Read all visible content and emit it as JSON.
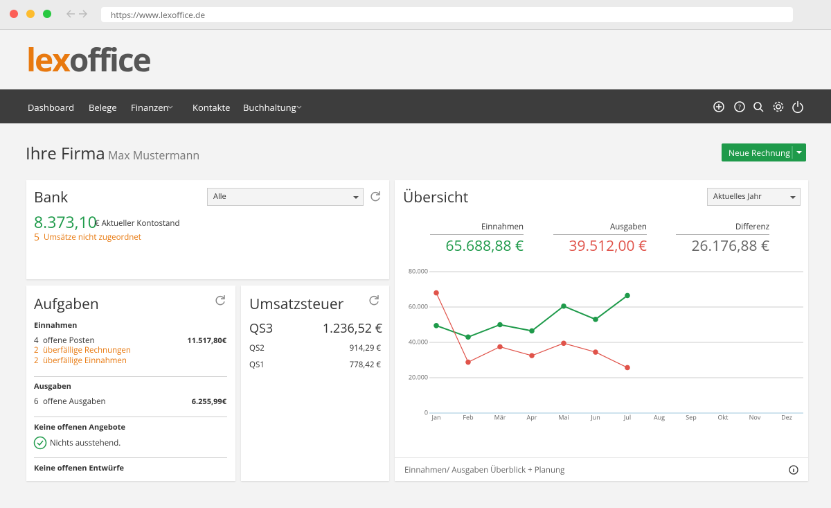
{
  "browser": {
    "url": "https://www.lexoffice.de"
  },
  "logo": {
    "part1": "lex",
    "part2": "office"
  },
  "nav": {
    "items": [
      "Dashboard",
      "Belege",
      "Finanzen",
      "Kontakte",
      "Buchhaltung"
    ]
  },
  "header": {
    "title": "Ihre Firma",
    "subtitle": "Max Mustermann",
    "button": "Neue Rechnung"
  },
  "bank": {
    "title": "Bank",
    "filter": "Alle",
    "balance": "8.373,10",
    "balance_label": "€ Aktueller Kontostand",
    "unassigned_count": "5",
    "unassigned_label": "Umsätze nicht zugeordnet"
  },
  "aufgaben": {
    "title": "Aufgaben",
    "income": {
      "heading": "Einnahmen",
      "open_count": "4",
      "open_label": "offene Posten",
      "open_amount": "11.517,80€",
      "overdue_invoices_count": "2",
      "overdue_invoices_label": "überfällige Rechnungen",
      "overdue_income_count": "2",
      "overdue_income_label": "überfällige Einnahmen"
    },
    "expenses": {
      "heading": "Ausgaben",
      "open_count": "6",
      "open_label": "offene Ausgaben",
      "open_amount": "6.255,99€"
    },
    "offers": {
      "heading": "Keine offenen Angebote",
      "status": "Nichts ausstehend."
    },
    "drafts": {
      "heading": "Keine offenen Entwürfe"
    }
  },
  "umsatzsteuer": {
    "title": "Umsatzsteuer",
    "rows": [
      [
        "QS3",
        "1.236,52 €"
      ],
      [
        "QS2",
        "914,29 €"
      ],
      [
        "QS1",
        "778,42 €"
      ]
    ]
  },
  "uebersicht": {
    "title": "Übersicht",
    "filter": "Aktuelles Jahr",
    "income_total": "65.688,88 €",
    "expense_total": "39.512,00 €",
    "difference_label": "Differenz",
    "difference_total": "26.176,88 €",
    "footer": "Einnahmen/ Ausgaben Überblick + Planung"
  },
  "chart_data": {
    "type": "line",
    "categories": [
      "Jan",
      "Feb",
      "Mär",
      "Apr",
      "Mai",
      "Jun",
      "Jul",
      "Aug",
      "Sep",
      "Okt",
      "Nov",
      "Dez"
    ],
    "series": [
      {
        "name": "Einnahmen",
        "color": "#1e9a4a",
        "values": [
          49500,
          43000,
          50000,
          46500,
          60500,
          53000,
          66500,
          null,
          null,
          null,
          null,
          null
        ]
      },
      {
        "name": "Ausgaben",
        "color": "#e0534a",
        "values": [
          68000,
          28800,
          37500,
          32500,
          39500,
          34500,
          25700,
          null,
          null,
          null,
          null,
          null
        ]
      }
    ],
    "ylim": [
      0,
      80000
    ],
    "yticks": [
      0,
      {
        "value": 20000,
        "label": "20.000"
      },
      {
        "value": 40000,
        "label": "40.000"
      },
      {
        "value": 60000,
        "label": "60.000"
      },
      {
        "value": 80000,
        "label": "80.000"
      }
    ],
    "grid": true
  }
}
